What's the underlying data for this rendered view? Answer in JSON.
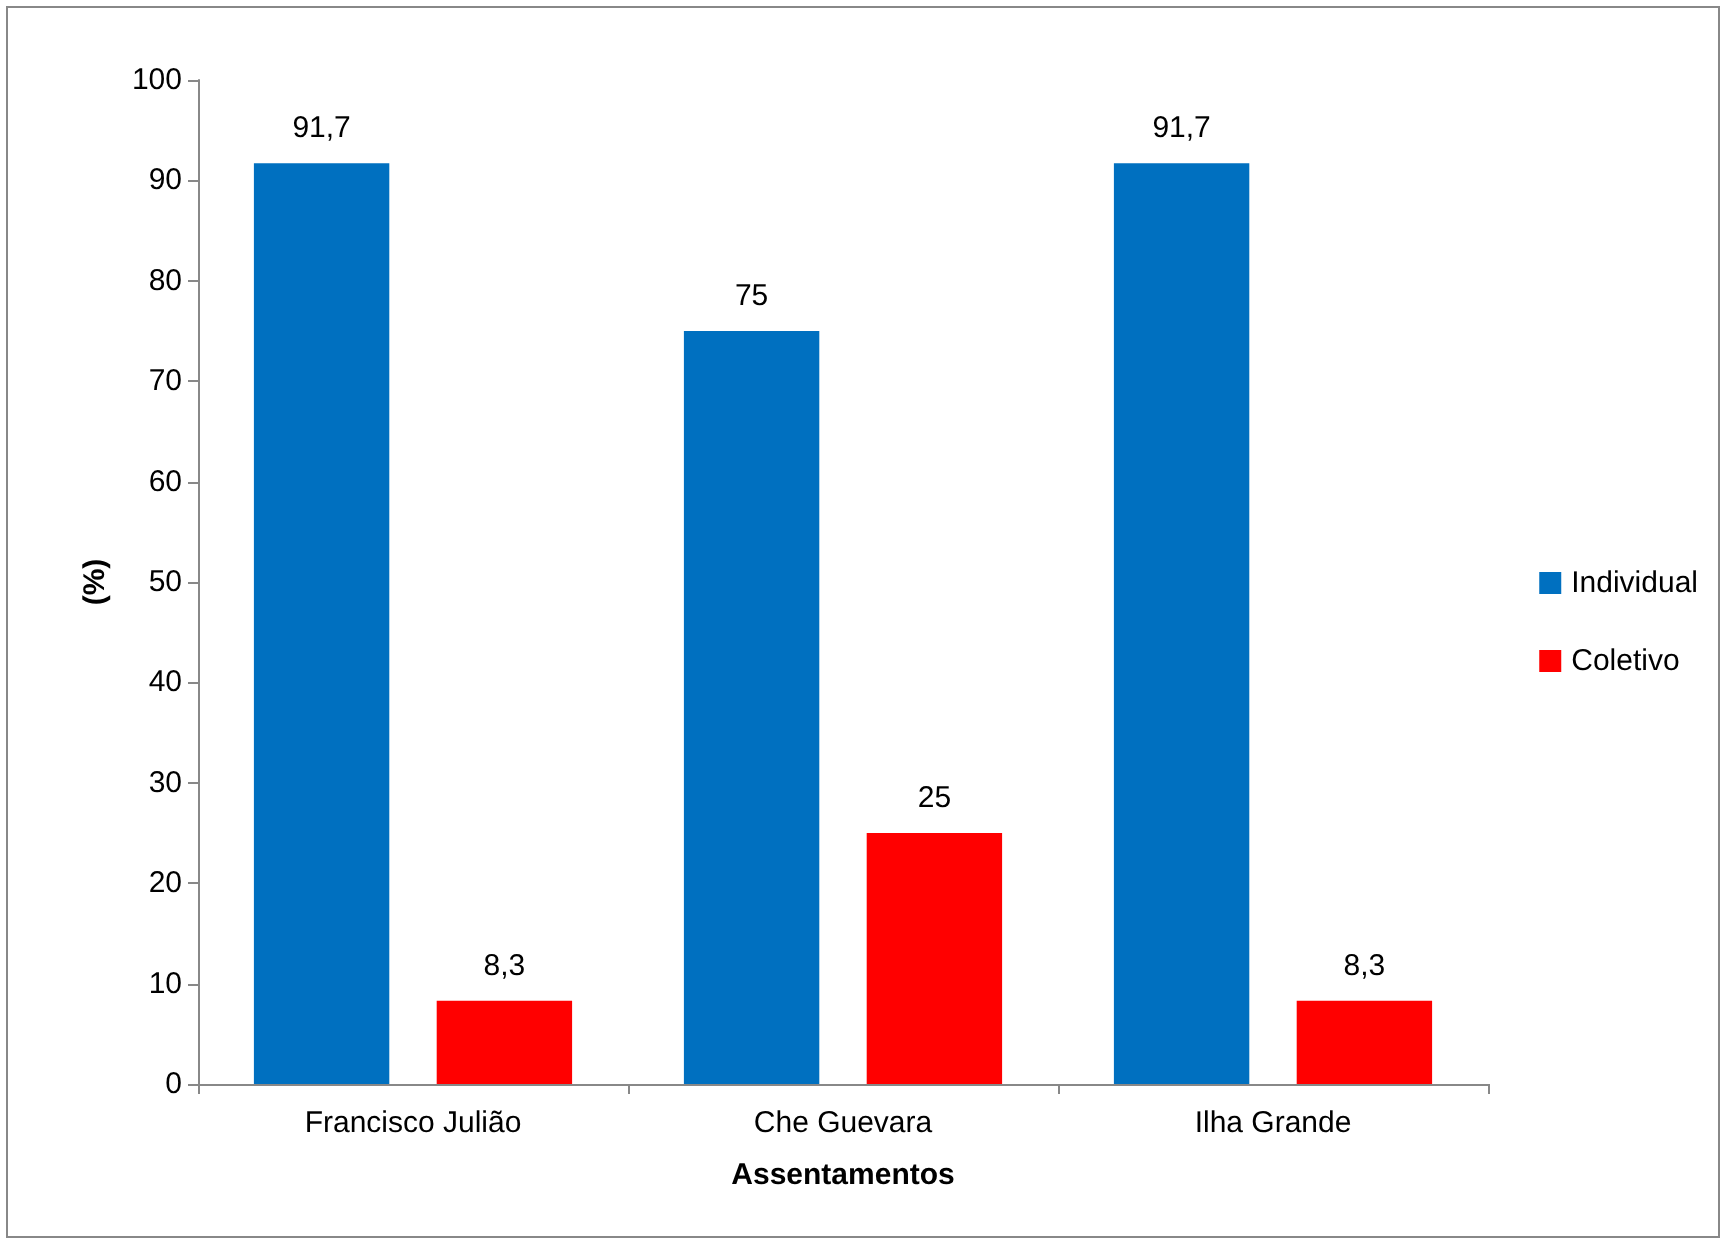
{
  "chart_data": {
    "type": "bar",
    "xlabel": "Assentamentos",
    "ylabel": "(%)",
    "categories": [
      "Francisco Julião",
      "Che Guevara",
      "Ilha Grande"
    ],
    "series": [
      {
        "name": "Individual",
        "color": "#0070c0",
        "values": [
          91.7,
          75,
          91.7
        ],
        "value_labels": [
          "91,7",
          "75",
          "91,7"
        ]
      },
      {
        "name": "Coletivo",
        "color": "#ff0000",
        "values": [
          8.3,
          25,
          8.3
        ],
        "value_labels": [
          "8,3",
          "25",
          "8,3"
        ]
      }
    ],
    "ylim": [
      0,
      100
    ],
    "yticks": [
      0,
      10,
      20,
      30,
      40,
      50,
      60,
      70,
      80,
      90,
      100
    ],
    "grid": false,
    "legend": "right"
  }
}
